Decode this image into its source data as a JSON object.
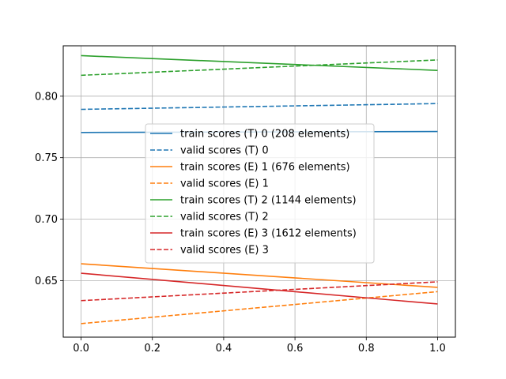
{
  "chart_data": {
    "type": "line",
    "title": "",
    "xlabel": "",
    "ylabel": "",
    "xlim": [
      -0.05,
      1.05
    ],
    "ylim": [
      0.604,
      0.841
    ],
    "xticks": [
      0.0,
      0.2,
      0.4,
      0.6,
      0.8,
      1.0
    ],
    "xtick_labels": [
      "0.0",
      "0.2",
      "0.4",
      "0.6",
      "0.8",
      "1.0"
    ],
    "yticks": [
      0.65,
      0.7,
      0.75,
      0.8
    ],
    "ytick_labels": [
      "0.65",
      "0.70",
      "0.75",
      "0.80"
    ],
    "grid": true,
    "legend_position": "center",
    "series": [
      {
        "name": "train scores (T) 0 (208 elements)",
        "x": [
          0,
          1
        ],
        "y": [
          0.7705,
          0.7713
        ],
        "color": "#1f77b4",
        "dash": "solid"
      },
      {
        "name": "valid scores (T) 0",
        "x": [
          0,
          1
        ],
        "y": [
          0.7893,
          0.794
        ],
        "color": "#1f77b4",
        "dash": "dashed"
      },
      {
        "name": "train scores (E) 1 (676 elements)",
        "x": [
          0,
          1
        ],
        "y": [
          0.6637,
          0.6445
        ],
        "color": "#ff7f0e",
        "dash": "solid"
      },
      {
        "name": "valid scores (E) 1",
        "x": [
          0,
          1
        ],
        "y": [
          0.615,
          0.641
        ],
        "color": "#ff7f0e",
        "dash": "dashed"
      },
      {
        "name": "train scores (T) 2 (1144 elements)",
        "x": [
          0,
          1
        ],
        "y": [
          0.833,
          0.821
        ],
        "color": "#2ca02c",
        "dash": "solid"
      },
      {
        "name": "valid scores (T) 2",
        "x": [
          0,
          1
        ],
        "y": [
          0.817,
          0.8295
        ],
        "color": "#2ca02c",
        "dash": "dashed"
      },
      {
        "name": "train scores (E) 3 (1612 elements)",
        "x": [
          0,
          1
        ],
        "y": [
          0.656,
          0.631
        ],
        "color": "#d62728",
        "dash": "solid"
      },
      {
        "name": "valid scores (E) 3",
        "x": [
          0,
          1
        ],
        "y": [
          0.6337,
          0.649
        ],
        "color": "#d62728",
        "dash": "dashed"
      }
    ]
  }
}
